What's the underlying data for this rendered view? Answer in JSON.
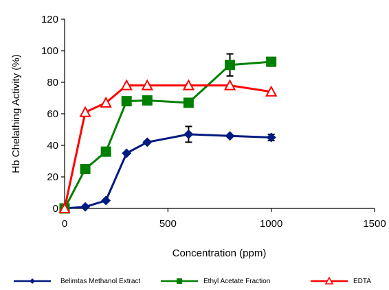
{
  "chart_data": {
    "type": "line",
    "title": "",
    "xlabel": "Concentration (ppm)",
    "ylabel": "Hb Chelathing Activity (%)",
    "xlim": [
      0,
      1500
    ],
    "ylim": [
      0,
      120
    ],
    "x_ticks": [
      "0",
      "500",
      "1000",
      "1500"
    ],
    "y_ticks": [
      "0",
      "20",
      "40",
      "60",
      "80",
      "100",
      "120"
    ],
    "grid": false,
    "legend_position": "bottom",
    "series": [
      {
        "name": "Belimtas Methanol Extract",
        "color": "#001a80",
        "marker": "diamond",
        "x": [
          0,
          100,
          200,
          300,
          400,
          600,
          800,
          1000
        ],
        "y": [
          0,
          1,
          5,
          35,
          42,
          47,
          46,
          45
        ],
        "error": [
          0,
          0,
          0,
          0,
          0,
          5,
          0,
          2
        ]
      },
      {
        "name": "Ethyl Acetate Fraction",
        "color": "#008000",
        "marker": "square",
        "x": [
          0,
          100,
          200,
          300,
          400,
          600,
          800,
          1000
        ],
        "y": [
          0,
          25,
          36,
          68,
          68.5,
          67,
          91,
          93
        ],
        "error": [
          0,
          0,
          0,
          0,
          0,
          0,
          7,
          0
        ]
      },
      {
        "name": "EDTA",
        "color": "#ff0000",
        "marker": "triangle",
        "x": [
          0,
          100,
          200,
          300,
          400,
          600,
          800,
          1000
        ],
        "y": [
          0,
          61,
          67,
          78,
          78,
          78,
          78,
          74
        ],
        "error": [
          0,
          0,
          0,
          0,
          0,
          0,
          0,
          0
        ]
      }
    ]
  }
}
